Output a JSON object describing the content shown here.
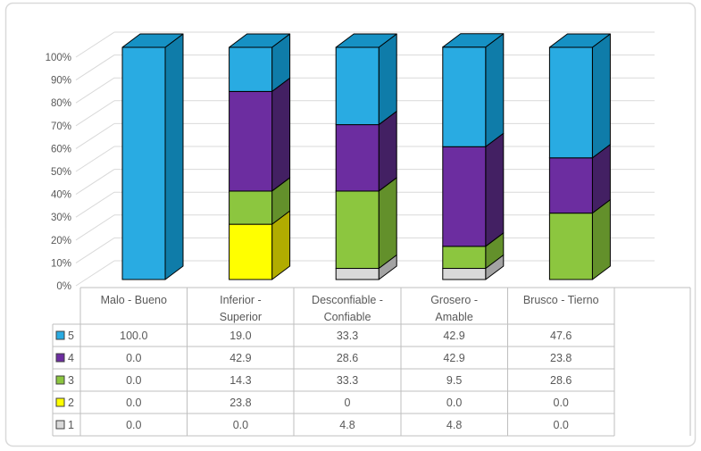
{
  "chart_data": {
    "type": "bar",
    "subtype": "3d-100-percent-stacked-column",
    "title": "",
    "categories": [
      "Malo - Bueno",
      "Inferior -\nSuperior",
      "Desconfiable -\nConfiable",
      "Grosero -\nAmable",
      "Brusco - Tierno"
    ],
    "series": [
      {
        "name": "5",
        "values": [
          100.0,
          19.0,
          33.3,
          42.9,
          47.6
        ],
        "colors": {
          "front": "#29ABE2",
          "top": "#1691C4",
          "side": "#0F7CA9"
        }
      },
      {
        "name": "4",
        "values": [
          0.0,
          42.9,
          28.6,
          42.9,
          23.8
        ],
        "colors": {
          "front": "#6C2DA0",
          "top": "#56247F",
          "side": "#432063"
        }
      },
      {
        "name": "3",
        "values": [
          0.0,
          14.3,
          33.3,
          9.5,
          28.6
        ],
        "colors": {
          "front": "#8CC63F",
          "top": "#76A833",
          "side": "#63902B"
        }
      },
      {
        "name": "2",
        "values": [
          0.0,
          23.8,
          0.0,
          0.0,
          0.0
        ],
        "colors": {
          "front": "#FFFF00",
          "top": "#D9D900",
          "side": "#B1AC00"
        }
      },
      {
        "name": "1",
        "values": [
          0.0,
          0.0,
          4.8,
          4.8,
          0.0
        ],
        "colors": {
          "front": "#D9D9D9",
          "top": "#C0C0C0",
          "side": "#A3A3A3"
        }
      }
    ],
    "y_axis": {
      "tick_labels": [
        "100%",
        "90%",
        "80%",
        "70%",
        "60%",
        "50%",
        "40%",
        "30%",
        "20%",
        "10%",
        "0%"
      ],
      "min": 0,
      "max": 100,
      "step": 10,
      "format": "percent"
    },
    "grid": true,
    "legend_position": "data-table-keys",
    "stack_order_bottom_to_top": [
      "1",
      "2",
      "3",
      "4",
      "5"
    ]
  },
  "data_table": {
    "column_headers": [
      "Malo - Bueno",
      "Inferior -\nSuperior",
      "Desconfiable -\nConfiable",
      "Grosero -\nAmable",
      "Brusco - Tierno"
    ],
    "rows": [
      {
        "key": "5",
        "cells": [
          "100.0",
          "19.0",
          "33.3",
          "42.9",
          "47.6"
        ]
      },
      {
        "key": "4",
        "cells": [
          "0.0",
          "42.9",
          "28.6",
          "42.9",
          "23.8"
        ]
      },
      {
        "key": "3",
        "cells": [
          "0.0",
          "14.3",
          "33.3",
          "9.5",
          "28.6"
        ]
      },
      {
        "key": "2",
        "cells": [
          "0.0",
          "23.8",
          "0",
          "0.0",
          "0.0"
        ]
      },
      {
        "key": "1",
        "cells": [
          "0.0",
          "0.0",
          "4.8",
          "4.8",
          "0.0"
        ]
      }
    ]
  },
  "colors": {
    "background": "#FFFFFF",
    "chart_border": "#D9D9D9",
    "gridline": "#D9D9D9",
    "table_border": "#BFBFBF",
    "text": "#595959",
    "bar_outline": "#000000",
    "legend_key_border": "#404040"
  }
}
